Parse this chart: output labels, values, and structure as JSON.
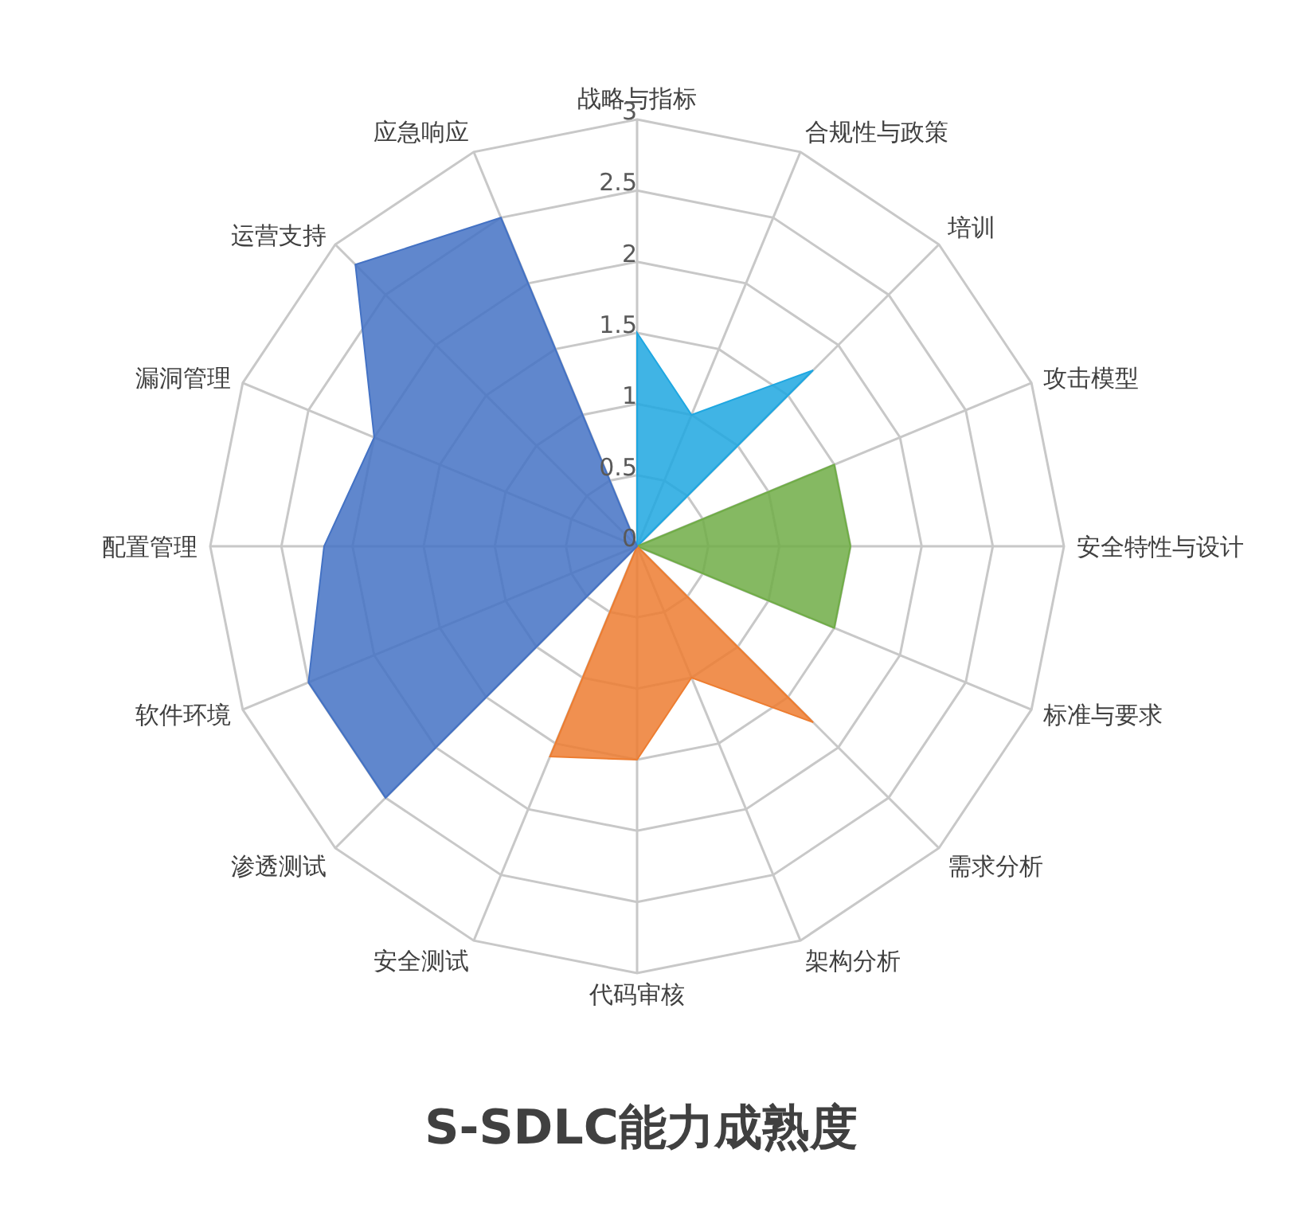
{
  "chart_data": {
    "type": "radar",
    "title": "S-SDLC能力成熟度",
    "categories": [
      "战略与指标",
      "合规性与政策",
      "培训",
      "攻击模型",
      "安全特性与设计",
      "标准与要求",
      "需求分析",
      "架构分析",
      "代码审核",
      "安全测试",
      "渗透测试",
      "软件环境",
      "配置管理",
      "漏洞管理",
      "运营支持",
      "应急响应"
    ],
    "series": [
      {
        "color": "#1fa7e1",
        "values": [
          1.5,
          1.0,
          1.75,
          0,
          0,
          0,
          0,
          0,
          0,
          0,
          0,
          0,
          0,
          0,
          0,
          0
        ]
      },
      {
        "color": "#70ad47",
        "values": [
          0,
          0,
          0,
          1.5,
          1.5,
          1.5,
          0,
          0,
          0,
          0,
          0,
          0,
          0,
          0,
          0,
          0
        ]
      },
      {
        "color": "#ed7d31",
        "values": [
          0,
          0,
          0,
          0,
          0,
          0,
          1.75,
          1.0,
          1.5,
          1.6,
          0,
          0,
          0,
          0,
          0,
          0
        ]
      },
      {
        "color": "#4472c4",
        "values": [
          0,
          0,
          0,
          0,
          0,
          0,
          0,
          0,
          0,
          0,
          2.5,
          2.5,
          2.2,
          2.0,
          2.8,
          2.5
        ]
      }
    ],
    "ylim": [
      0,
      3
    ],
    "yticks": [
      0,
      0.5,
      1,
      1.5,
      2,
      2.5,
      3
    ],
    "grid": true,
    "legend": false
  }
}
